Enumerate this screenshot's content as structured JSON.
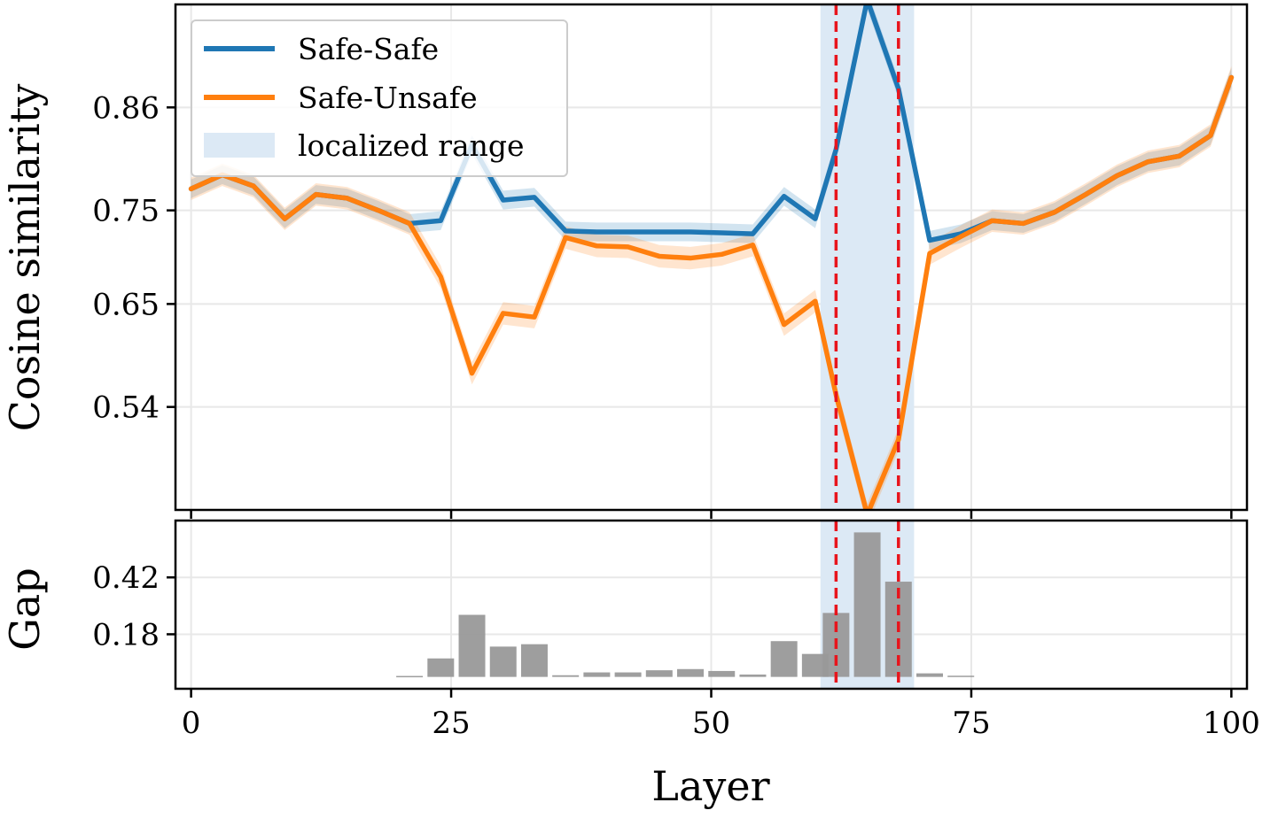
{
  "chart_data": [
    {
      "type": "line",
      "ylabel": "Cosine similarity",
      "xlim": [
        -1.5,
        101.5
      ],
      "ylim": [
        0.43,
        0.97
      ],
      "yticks": [
        0.54,
        0.65,
        0.75,
        0.86
      ],
      "ytick_labels": [
        "0.54",
        "0.65",
        "0.75",
        "0.86"
      ],
      "grid": true,
      "legend_position": "upper-left",
      "localized_range": {
        "label": "localized range",
        "x": [
          60.5,
          69.5
        ],
        "color": "#dce9f5"
      },
      "cut_lines": {
        "x": [
          62,
          68
        ],
        "color": "#e8141c"
      },
      "x": [
        0,
        3,
        6,
        9,
        12,
        15,
        18,
        21,
        24,
        27,
        30,
        33,
        36,
        39,
        42,
        45,
        48,
        51,
        54,
        57,
        60,
        62,
        65,
        68,
        71,
        74,
        77,
        80,
        83,
        86,
        89,
        92,
        95,
        98,
        100
      ],
      "series": [
        {
          "name": "Safe-Safe",
          "color": "#1f77b4",
          "values": [
            0.773,
            0.788,
            0.776,
            0.741,
            0.767,
            0.763,
            0.75,
            0.736,
            0.739,
            0.82,
            0.761,
            0.764,
            0.728,
            0.727,
            0.727,
            0.727,
            0.727,
            0.726,
            0.725,
            0.765,
            0.741,
            0.815,
            0.975,
            0.88,
            0.718,
            0.725,
            0.739,
            0.736,
            0.748,
            0.767,
            0.787,
            0.802,
            0.808,
            0.83,
            0.892
          ],
          "band": 0.01
        },
        {
          "name": "Safe-Unsafe",
          "color": "#ff7f0e",
          "values": [
            0.773,
            0.788,
            0.776,
            0.741,
            0.767,
            0.763,
            0.75,
            0.736,
            0.679,
            0.576,
            0.64,
            0.636,
            0.721,
            0.712,
            0.711,
            0.701,
            0.699,
            0.703,
            0.713,
            0.628,
            0.653,
            0.553,
            0.425,
            0.505,
            0.704,
            0.722,
            0.739,
            0.736,
            0.748,
            0.767,
            0.787,
            0.802,
            0.808,
            0.83,
            0.892
          ],
          "band": 0.012
        }
      ]
    },
    {
      "type": "bar",
      "xlabel": "Layer",
      "ylabel": "Gap",
      "xlim": [
        -1.5,
        101.5
      ],
      "ylim": [
        -0.05,
        0.66
      ],
      "yticks": [
        0.18,
        0.42
      ],
      "ytick_labels": [
        "0.18",
        "0.42"
      ],
      "xticks": [
        0,
        25,
        50,
        75,
        100
      ],
      "xtick_labels": [
        "0",
        "25",
        "50",
        "75",
        "100"
      ],
      "grid": true,
      "x": [
        21,
        24,
        27,
        30,
        33,
        36,
        39,
        42,
        45,
        48,
        51,
        54,
        57,
        60,
        62,
        65,
        68,
        71,
        74
      ],
      "values": [
        0.004,
        0.078,
        0.262,
        0.128,
        0.138,
        0.007,
        0.019,
        0.019,
        0.028,
        0.033,
        0.025,
        0.01,
        0.151,
        0.097,
        0.27,
        0.61,
        0.402,
        0.015,
        0.005
      ],
      "color": "#999999"
    }
  ]
}
